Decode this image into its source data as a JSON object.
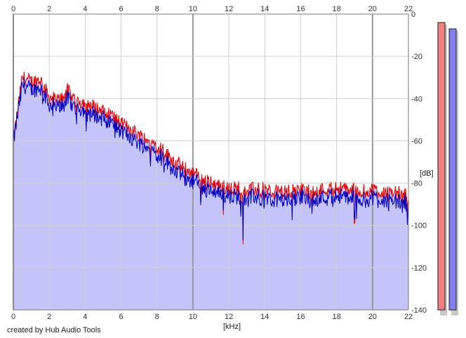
{
  "chart_data": {
    "type": "area",
    "title": "",
    "xlabel": "[kHz]",
    "ylabel": "[dB]",
    "xlim": [
      0,
      22
    ],
    "ylim": [
      -140,
      0
    ],
    "x_ticks": [
      0,
      2,
      4,
      6,
      8,
      10,
      12,
      14,
      16,
      18,
      20,
      22
    ],
    "y_ticks": [
      0,
      -20,
      -40,
      -60,
      -80,
      -100,
      -120,
      -140
    ],
    "grid": true,
    "legend": "none",
    "colors": {
      "fill": "#c4c4fa",
      "channel_1": "#e00000",
      "channel_2": "#0000c0",
      "meter_1": "#f08080",
      "meter_2": "#8080f0",
      "grid_major": "#999999",
      "grid_minor": "#d0d0d0"
    },
    "series": [
      {
        "x": [
          0,
          0.5,
          1,
          1.5,
          2,
          2.5,
          3,
          3.5,
          4,
          4.5,
          5,
          5.5,
          6,
          6.5,
          7,
          7.5,
          8,
          8.5,
          9,
          9.5,
          10,
          10.5,
          11,
          11.5,
          12,
          12.5,
          13,
          13.5,
          14,
          14.5,
          15,
          15.5,
          16,
          16.5,
          17,
          17.5,
          18,
          18.5,
          19,
          19.5,
          20,
          20.5,
          21,
          21.5,
          22
        ],
        "values": [
          -60,
          -30,
          -32,
          -31,
          -39,
          -41,
          -36,
          -41,
          -42,
          -44,
          -46,
          -48,
          -52,
          -54,
          -57,
          -60,
          -62,
          -66,
          -70,
          -73,
          -75,
          -78,
          -80,
          -81,
          -83,
          -82,
          -83,
          -83,
          -83,
          -84,
          -84,
          -84,
          -83,
          -84,
          -83,
          -83,
          -82,
          -83,
          -83,
          -84,
          -83,
          -84,
          -84,
          -85,
          -86
        ]
      },
      {
        "x": [
          0,
          0.5,
          1,
          1.5,
          2,
          2.5,
          3,
          3.5,
          4,
          4.5,
          5,
          5.5,
          6,
          6.5,
          7,
          7.5,
          8,
          8.5,
          9,
          9.5,
          10,
          10.5,
          11,
          11.5,
          12,
          12.5,
          13,
          13.5,
          14,
          14.5,
          15,
          15.5,
          16,
          16.5,
          17,
          17.5,
          18,
          18.5,
          19,
          19.5,
          20,
          20.5,
          21,
          21.5,
          22
        ],
        "values": [
          -60,
          -33,
          -35,
          -34,
          -42,
          -44,
          -39,
          -44,
          -45,
          -47,
          -49,
          -51,
          -55,
          -57,
          -60,
          -63,
          -65,
          -69,
          -73,
          -76,
          -78,
          -81,
          -83,
          -84,
          -86,
          -85,
          -86,
          -86,
          -86,
          -87,
          -87,
          -87,
          -86,
          -87,
          -86,
          -86,
          -85,
          -86,
          -86,
          -87,
          -86,
          -87,
          -87,
          -88,
          -89
        ]
      }
    ],
    "dips": [
      {
        "x": 12.8,
        "y": -109
      },
      {
        "x": 19.0,
        "y": -99
      },
      {
        "x": 11.7,
        "y": -95
      }
    ],
    "meters": [
      {
        "level_db": -4
      },
      {
        "level_db": -7
      }
    ]
  },
  "credit": "created by Hub Audio Tools"
}
